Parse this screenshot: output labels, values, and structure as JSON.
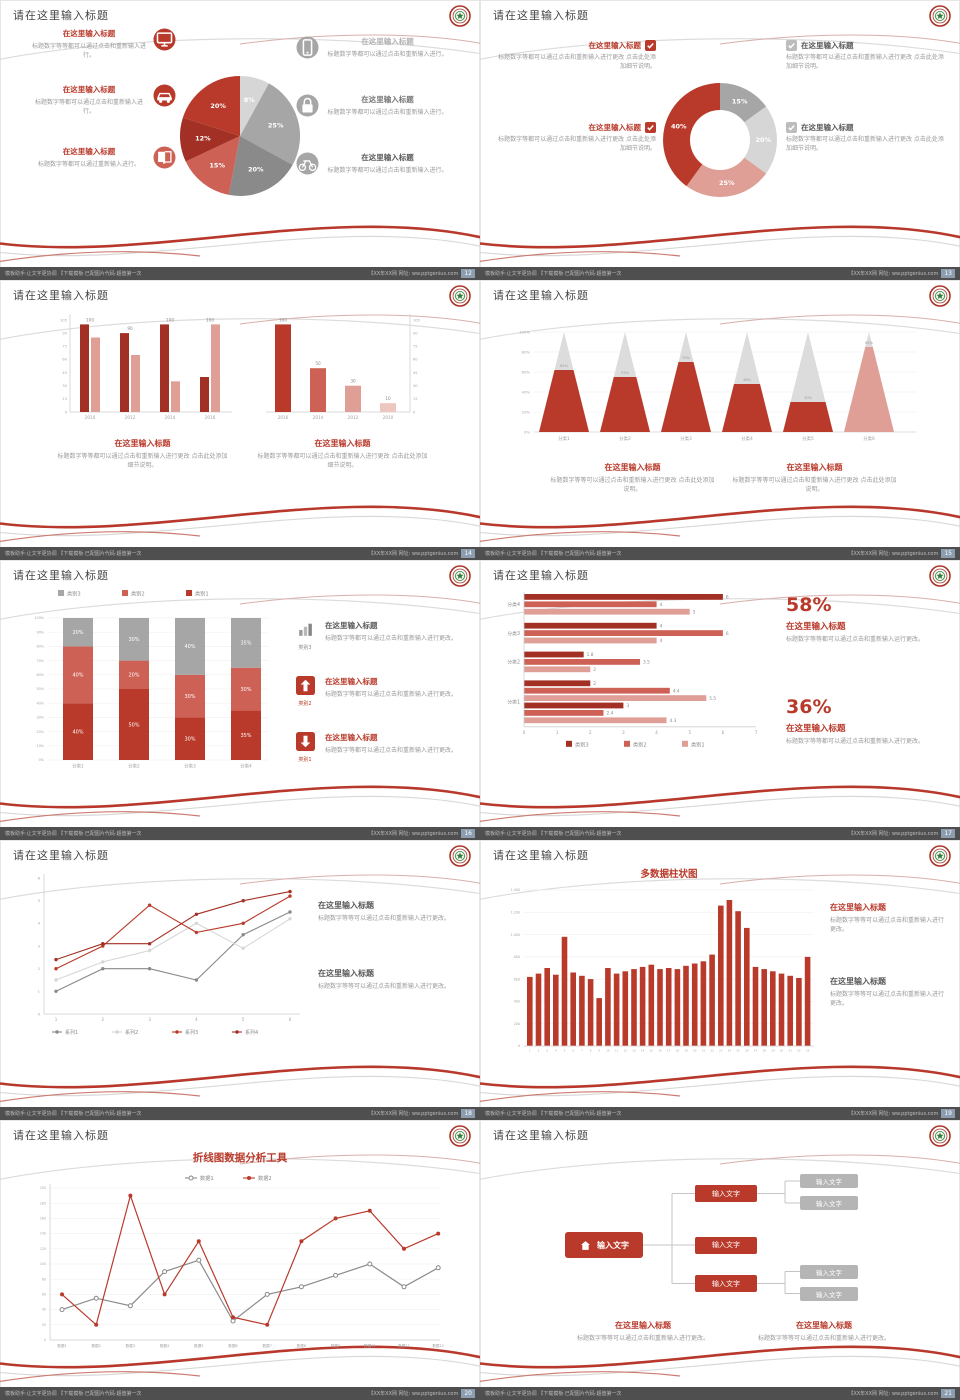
{
  "page": {
    "background": "#e2e2e2"
  },
  "common": {
    "slide_title": "请在这里输入标题",
    "footer_left": "模板助手:让文字更协调 【下载模板·已配图片代码·超值第一次",
    "footer_right": "【XX年XX网 网址: ww.pptgenius.com",
    "colors": {
      "red_dark": "#a23024",
      "red": "#b93a2b",
      "red_mid": "#cd6155",
      "pink": "#df9e96",
      "pink_light": "#eec6c0",
      "gray_dark": "#8a8a8a",
      "gray": "#a6a6a6",
      "gray_light": "#d6d6d6",
      "text_dark": "#595959",
      "text_gray": "#9a9a9a"
    }
  },
  "slides": [
    {
      "page_no": "12",
      "type": "pie_callouts",
      "chart_index": 0,
      "left_items": [
        {
          "icon": "monitor",
          "heading": "在这里输入标题",
          "heading_color": "#b93a2b",
          "body": "标题数字等等都可以通过点击和重新输入进行。"
        },
        {
          "icon": "car",
          "heading": "在这里输入标题",
          "heading_color": "#b93a2b",
          "body": "标题数字等都可以通过点击和重新输入进行。"
        },
        {
          "icon": "book",
          "heading": "在这里输入标题",
          "heading_color": "#b93a2b",
          "body": "标题数字等都可以通过重新输入进行。"
        }
      ],
      "right_items": [
        {
          "icon": "phone",
          "heading": "在这里输入标题",
          "heading_color": "#b3b3b3",
          "body": "标题数字等都可以通过点击和重新输入进行。"
        },
        {
          "icon": "lock",
          "heading": "在这里输入标题",
          "heading_color": "#777777",
          "body": "标题数字等都可以通过点击和重新输入进行。"
        },
        {
          "icon": "bicycle",
          "heading": "在这里输入标题",
          "heading_color": "#595959",
          "body": "标题数字等都可以通过点击和重新输入进行。"
        }
      ]
    },
    {
      "page_no": "13",
      "type": "donut_checklist",
      "chart_index": 1,
      "left_items": [
        {
          "heading": "在这里输入标题",
          "body": "标题数字等都可以通过点击和重新输入进行更改 点击此处添加细节说明。"
        },
        {
          "heading": "在这里输入标题",
          "body": "标题数字等都可以通过点击和重新输入进行更改 点击此处添加细节说明。"
        }
      ],
      "right_items": [
        {
          "heading": "在这里输入标题",
          "body": "标题数字等都可以通过点击和重新输入进行更改 点击此处添加细节说明。"
        },
        {
          "heading": "在这里输入标题",
          "body": "标题数字等都可以通过点击和重新输入进行更改 点击此处添加细节说明。"
        }
      ]
    },
    {
      "page_no": "14",
      "type": "double_bars",
      "chart_index": [
        2,
        3
      ],
      "blocks": [
        {
          "heading": "在这里输入标题",
          "body": "标题数字等等都可以通过点击和重新输入进行更改 点击此处添加细节说明。"
        },
        {
          "heading": "在这里输入标题",
          "body": "标题数字等等都可以通过点击和重新输入进行更改 点击此处添加细节说明。"
        }
      ]
    },
    {
      "page_no": "15",
      "type": "pyramid",
      "chart_index": 4,
      "blocks": [
        {
          "heading": "在这里输入标题",
          "body": "标题数字等等可以通过点击和重新输入进行更改 点击此处添加说明。"
        },
        {
          "heading": "在这里输入标题",
          "body": "标题数字等等可以通过点击和重新输入进行更改 点击此处添加说明。"
        }
      ]
    },
    {
      "page_no": "16",
      "type": "stacked_bars",
      "chart_index": 5,
      "right_items": [
        {
          "icon": "bars",
          "label": "类别3",
          "heading": "在这里输入标题",
          "heading_color": "#595959",
          "body": "标题数字等都可以通过点击和重新输入进行更改。"
        },
        {
          "icon": "up",
          "label": "类别2",
          "heading": "在这里输入标题",
          "heading_color": "#b93a2b",
          "body": "标题数字等都可以通过点击和重新输入进行更改。"
        },
        {
          "icon": "down",
          "label": "类别1",
          "heading": "在这里输入标题",
          "heading_color": "#b93a2b",
          "body": "标题数字等都可以通过点击和重新输入进行更改。"
        }
      ]
    },
    {
      "page_no": "17",
      "type": "hbars_stats",
      "chart_index": 6,
      "stats": [
        {
          "value": "58%",
          "heading": "在这里输入标题",
          "body": "标题数字等等都可以通过点击和重新输入运行更改。"
        },
        {
          "value": "36%",
          "heading": "在这里输入标题",
          "body": "标题数字等等都可以通过点击和重新输入进行更改。"
        }
      ]
    },
    {
      "page_no": "18",
      "type": "line_multi",
      "chart_index": 7,
      "blocks": [
        {
          "heading": "在这里输入标题",
          "body": "标题数字等等可以通过点击和重新输入进行更改。"
        },
        {
          "heading": "在这里输入标题",
          "body": "标题数字等等可以通过点击和重新输入进行更改。"
        }
      ]
    },
    {
      "page_no": "19",
      "type": "columns_many",
      "chart_index": 8,
      "blocks": [
        {
          "heading": "在这里输入标题",
          "body": "标题数字等等可以通过点击和重新输入进行更改。"
        },
        {
          "heading": "在这里输入标题",
          "body": "标题数字等等可以通过点击和重新输入进行更改。"
        }
      ]
    },
    {
      "page_no": "20",
      "type": "line_two",
      "chart_index": 9
    },
    {
      "page_no": "21",
      "type": "flowchart",
      "chart_index": 10,
      "blocks": [
        {
          "heading": "在这里输入标题",
          "body": "标题数字等等可以通过点击和重新输入进行更改。"
        },
        {
          "heading": "在这里输入标题",
          "body": "标题数字等等可以通过点击和重新输入进行更改。"
        }
      ]
    }
  ],
  "chart_data": [
    {
      "type": "pie",
      "segments": [
        {
          "label": "8%",
          "value": 8,
          "color": "gray_light"
        },
        {
          "label": "25%",
          "value": 25,
          "color": "gray"
        },
        {
          "label": "20%",
          "value": 20,
          "color": "gray_dark"
        },
        {
          "label": "15%",
          "value": 15,
          "color": "red_mid"
        },
        {
          "label": "12%",
          "value": 12,
          "color": "red_dark"
        },
        {
          "label": "20%",
          "value": 20,
          "color": "red"
        }
      ]
    },
    {
      "type": "pie",
      "subtype": "donut",
      "segments": [
        {
          "label": "15%",
          "value": 15,
          "color": "gray"
        },
        {
          "label": "20%",
          "value": 20,
          "color": "gray_light"
        },
        {
          "label": "25%",
          "value": 25,
          "color": "pink"
        },
        {
          "label": "40%",
          "value": 40,
          "color": "red"
        }
      ]
    },
    {
      "type": "bar",
      "categories": [
        "2010",
        "2012",
        "2014",
        "2016"
      ],
      "series": [
        {
          "name": "系列1",
          "color": "red_dark",
          "values": [
            100,
            90,
            100,
            40
          ]
        },
        {
          "name": "系列2",
          "color": "pink",
          "values": [
            85,
            65,
            35,
            100
          ]
        }
      ],
      "group_labels": [
        "100",
        "90",
        "100",
        "100"
      ],
      "ylim": [
        0,
        105
      ],
      "yticks": [
        0,
        15,
        30,
        45,
        60,
        75,
        90,
        105
      ]
    },
    {
      "type": "bar",
      "categories": [
        "2016",
        "2014",
        "2012",
        "2010"
      ],
      "values": [
        100,
        50,
        30,
        10
      ],
      "labels": [
        "100",
        "50",
        "30",
        "10"
      ],
      "colors": [
        "red",
        "red_mid",
        "pink",
        "pink_light"
      ],
      "ylim": [
        0,
        105
      ],
      "yticks": [
        0,
        15,
        30,
        45,
        60,
        75,
        90,
        105
      ]
    },
    {
      "type": "bar",
      "subtype": "pyramid",
      "categories": [
        "分类1",
        "分类2",
        "分类3",
        "分类4",
        "分类5",
        "分类6"
      ],
      "values": [
        62,
        55,
        70,
        48,
        30,
        85
      ],
      "colors": [
        "red",
        "red",
        "red",
        "red",
        "red",
        "pink"
      ],
      "yticks": [
        "0%",
        "20%",
        "40%",
        "60%",
        "80%",
        "100%"
      ]
    },
    {
      "type": "bar",
      "subtype": "stacked",
      "categories": [
        "分类1",
        "分类2",
        "分类3",
        "分类4"
      ],
      "series": [
        {
          "name": "类别1",
          "color": "red",
          "values": [
            40,
            50,
            30,
            35
          ]
        },
        {
          "name": "类别2",
          "color": "red_mid",
          "values": [
            40,
            20,
            30,
            30
          ]
        },
        {
          "name": "类别3",
          "color": "gray",
          "values": [
            20,
            30,
            40,
            35
          ]
        }
      ],
      "legend": [
        "类别3",
        "类别2",
        "类别1"
      ],
      "legend_colors": [
        "gray",
        "red_mid",
        "red"
      ],
      "yticks": [
        "0%",
        "10%",
        "20%",
        "30%",
        "40%",
        "50%",
        "60%",
        "70%",
        "80%",
        "90%",
        "100%"
      ]
    },
    {
      "type": "bar",
      "subtype": "horizontal",
      "x_max": 7,
      "xticks": [
        0,
        1,
        2,
        3,
        4,
        5,
        6,
        7
      ],
      "legend": [
        {
          "name": "类别3",
          "color": "red_dark"
        },
        {
          "name": "类别2",
          "color": "red_mid"
        },
        {
          "name": "类别1",
          "color": "pink"
        }
      ],
      "groups": [
        {
          "label": "分类4",
          "bars": [
            {
              "value": 6,
              "color": "red_dark"
            },
            {
              "value": 4,
              "color": "red_mid"
            },
            {
              "value": 5,
              "color": "pink"
            }
          ]
        },
        {
          "label": "分类3",
          "bars": [
            {
              "value": 4,
              "color": "red_dark"
            },
            {
              "value": 6,
              "color": "red_mid"
            },
            {
              "value": 4,
              "color": "pink"
            }
          ]
        },
        {
          "label": "分类2",
          "bars": [
            {
              "value": 1.8,
              "color": "red_dark"
            },
            {
              "value": 3.5,
              "color": "red_mid"
            },
            {
              "value": 2,
              "color": "pink"
            }
          ]
        },
        {
          "label": "分类1",
          "bars": [
            {
              "value": 2,
              "color": "red_dark"
            },
            {
              "value": 4.4,
              "color": "red_mid"
            },
            {
              "value": 5.5,
              "color": "pink"
            },
            {
              "value": 3,
              "color": "red_dark"
            },
            {
              "value": 2.4,
              "color": "red_mid"
            },
            {
              "value": 4.3,
              "color": "pink"
            }
          ]
        }
      ]
    },
    {
      "type": "line",
      "x": [
        1,
        2,
        3,
        4,
        5,
        6
      ],
      "ylim": [
        0,
        6
      ],
      "yticks": [
        0,
        1,
        2,
        3,
        4,
        5,
        6
      ],
      "series": [
        {
          "name": "系列1",
          "color": "gray_dark",
          "values": [
            1,
            2,
            2,
            1.5,
            3.5,
            4.5
          ]
        },
        {
          "name": "系列2",
          "color": "gray_light",
          "values": [
            1.5,
            2.3,
            2.8,
            4,
            2.9,
            4.2
          ]
        },
        {
          "name": "系列3",
          "color": "red",
          "values": [
            2,
            3,
            4.8,
            3.6,
            4,
            5.2
          ]
        },
        {
          "name": "系列4",
          "color": "red_dark",
          "values": [
            2.4,
            3.1,
            3.1,
            4.4,
            5,
            5.4
          ]
        }
      ]
    },
    {
      "type": "bar",
      "title": "多数据柱状图",
      "color": "red",
      "categories": [
        "1",
        "2",
        "3",
        "4",
        "5",
        "6",
        "7",
        "8",
        "9",
        "10",
        "11",
        "12",
        "13",
        "14",
        "15",
        "16",
        "17",
        "18",
        "19",
        "20",
        "21",
        "22",
        "23",
        "24",
        "25",
        "26",
        "27",
        "28",
        "29",
        "30",
        "31",
        "32",
        "33"
      ],
      "values": [
        620,
        650,
        700,
        640,
        980,
        660,
        630,
        600,
        430,
        700,
        650,
        670,
        690,
        710,
        730,
        690,
        700,
        690,
        720,
        740,
        760,
        820,
        1260,
        1310,
        1210,
        1060,
        710,
        690,
        670,
        650,
        630,
        610,
        800
      ],
      "ylim": [
        0,
        1400
      ],
      "ytick_labels": [
        "0",
        "200",
        "400",
        "600",
        "800",
        "1,000",
        "1,200",
        "1,400"
      ]
    },
    {
      "type": "line",
      "title": "折线图数据分析工具",
      "x_labels": [
        "数据1",
        "数据2",
        "数据3",
        "数据4",
        "数据5",
        "数据6",
        "数据7",
        "数据8",
        "数据9",
        "数据10",
        "数据11",
        "数据12"
      ],
      "ylim": [
        0,
        200
      ],
      "yticks": [
        0,
        20,
        40,
        60,
        80,
        100,
        120,
        140,
        160,
        180,
        200
      ],
      "series": [
        {
          "name": "数据1",
          "color": "gray_dark",
          "values": [
            40,
            55,
            45,
            90,
            105,
            25,
            60,
            70,
            85,
            100,
            70,
            95
          ]
        },
        {
          "name": "数据2",
          "color": "red",
          "values": [
            60,
            20,
            190,
            60,
            130,
            30,
            20,
            130,
            160,
            170,
            120,
            140
          ]
        }
      ]
    },
    {
      "type": "diagram",
      "subtype": "flow",
      "root": {
        "label": "输入文字",
        "icon": "home"
      },
      "children": [
        {
          "label": "输入文字",
          "leaves": [
            "输入文字",
            "输入文字"
          ]
        },
        {
          "label": "输入文字",
          "leaves": []
        },
        {
          "label": "输入文字",
          "leaves": [
            "输入文字",
            "输入文字"
          ]
        }
      ]
    }
  ]
}
